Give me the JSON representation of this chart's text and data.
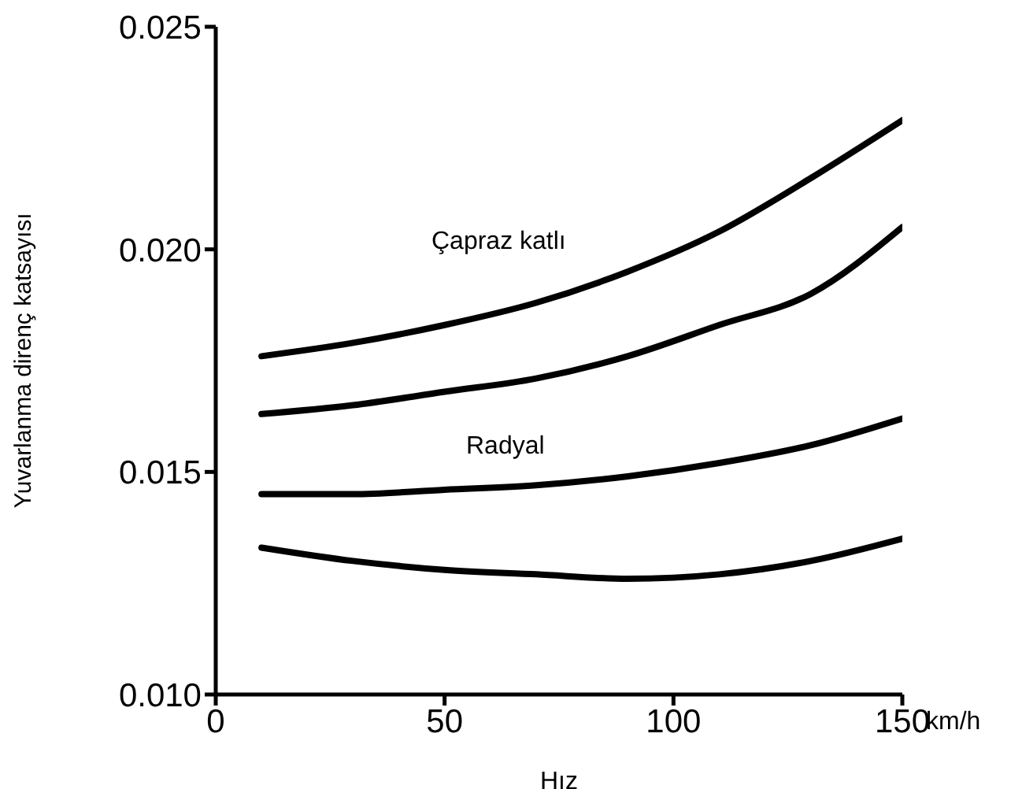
{
  "chart_data": {
    "type": "line",
    "xlabel": "Hız",
    "ylabel": "Yuvarlanma direnç katsayısı",
    "x": [
      10,
      30,
      50,
      70,
      90,
      110,
      130,
      150
    ],
    "series": [
      {
        "color": "#000000",
        "values": [
          0.0176,
          0.0179,
          0.0183,
          0.0188,
          0.0195,
          0.0204,
          0.0216,
          0.0229
        ]
      },
      {
        "color": "#000000",
        "values": [
          0.0163,
          0.0165,
          0.0168,
          0.0171,
          0.0176,
          0.0183,
          0.019,
          0.0205
        ]
      },
      {
        "color": "#000000",
        "values": [
          0.0145,
          0.0145,
          0.0146,
          0.0147,
          0.0149,
          0.0152,
          0.0156,
          0.0162
        ]
      },
      {
        "color": "#000000",
        "values": [
          0.0133,
          0.013,
          0.0128,
          0.0127,
          0.0126,
          0.0127,
          0.013,
          0.0135
        ]
      }
    ],
    "xlim": [
      0,
      150
    ],
    "xticks": [
      0,
      50,
      100,
      150
    ],
    "ylim": [
      0.01,
      0.025
    ],
    "yticks": [
      {
        "value": 0.01,
        "label": "0.010"
      },
      {
        "value": 0.015,
        "label": "0.015"
      },
      {
        "value": 0.02,
        "label": "0.020"
      },
      {
        "value": 0.025,
        "label": "0.025"
      }
    ],
    "annotations": [
      "Çapraz katlı",
      "Radyal",
      "km/h"
    ],
    "grid": false,
    "legend": false,
    "marker": "none",
    "line_style": "solid"
  }
}
